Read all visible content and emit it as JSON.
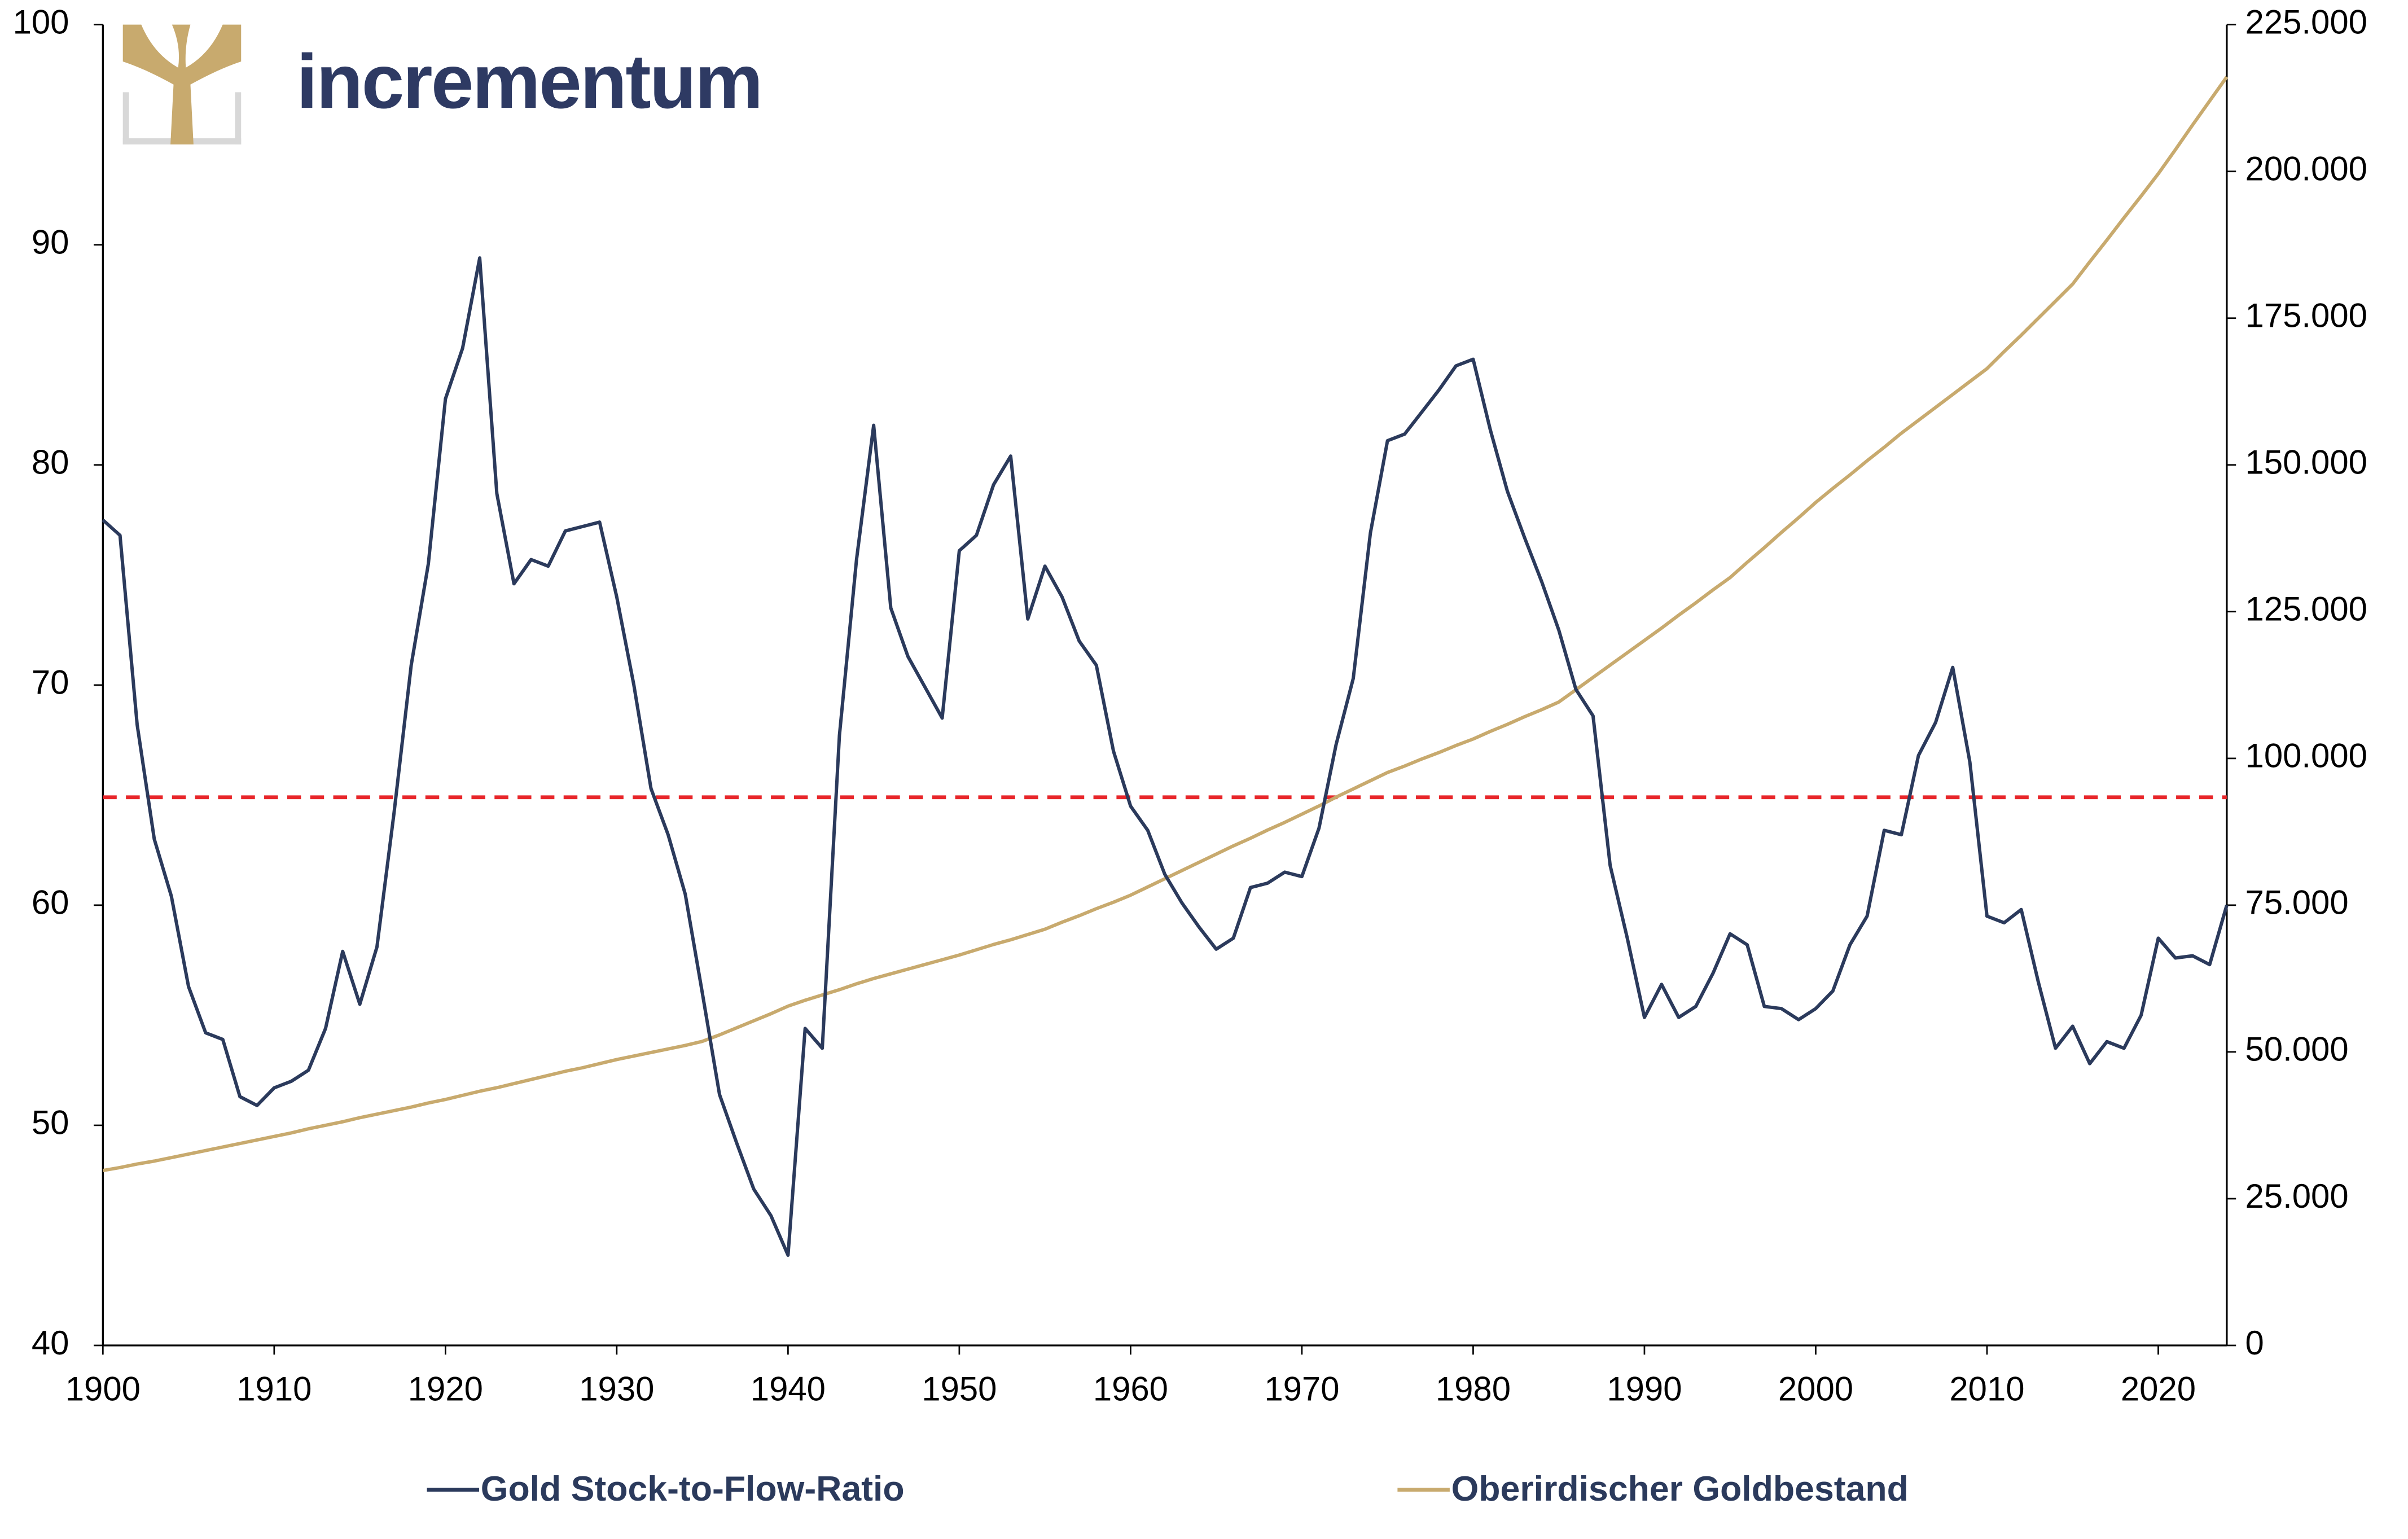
{
  "chart_data": {
    "type": "line",
    "logo": "incrementum",
    "x": [
      1900,
      1901,
      1902,
      1903,
      1904,
      1905,
      1906,
      1907,
      1908,
      1909,
      1910,
      1911,
      1912,
      1913,
      1914,
      1915,
      1916,
      1917,
      1918,
      1919,
      1920,
      1921,
      1922,
      1923,
      1924,
      1925,
      1926,
      1927,
      1928,
      1929,
      1930,
      1931,
      1932,
      1933,
      1934,
      1935,
      1936,
      1937,
      1938,
      1939,
      1940,
      1941,
      1942,
      1943,
      1944,
      1945,
      1946,
      1947,
      1948,
      1949,
      1950,
      1951,
      1952,
      1953,
      1954,
      1955,
      1956,
      1957,
      1958,
      1959,
      1960,
      1961,
      1962,
      1963,
      1964,
      1965,
      1966,
      1967,
      1968,
      1969,
      1970,
      1971,
      1972,
      1973,
      1974,
      1975,
      1976,
      1977,
      1978,
      1979,
      1980,
      1981,
      1982,
      1983,
      1984,
      1985,
      1986,
      1987,
      1988,
      1989,
      1990,
      1991,
      1992,
      1993,
      1994,
      1995,
      1996,
      1997,
      1998,
      1999,
      2000,
      2001,
      2002,
      2003,
      2004,
      2005,
      2006,
      2007,
      2008,
      2009,
      2010,
      2011,
      2012,
      2013,
      2014,
      2015,
      2016,
      2017,
      2018,
      2019,
      2020,
      2021,
      2022,
      2023,
      2024
    ],
    "series": [
      {
        "name": "Gold Stock-to-Flow-Ratio",
        "color": "#2b3a5c",
        "axis": "y",
        "values": [
          77.5,
          76.8,
          68.2,
          63.0,
          60.4,
          56.3,
          54.2,
          53.9,
          51.3,
          50.9,
          51.7,
          52.0,
          52.5,
          54.4,
          57.9,
          55.5,
          58.1,
          64.2,
          70.9,
          75.5,
          83.0,
          85.3,
          89.4,
          78.7,
          74.6,
          75.7,
          75.4,
          77.0,
          77.2,
          77.4,
          74.0,
          70.0,
          65.3,
          63.2,
          60.5,
          56.0,
          51.4,
          49.2,
          47.1,
          45.9,
          44.1,
          54.4,
          53.5,
          67.7,
          75.7,
          81.8,
          73.5,
          71.3,
          69.9,
          68.5,
          76.1,
          76.8,
          79.1,
          80.4,
          73.0,
          75.4,
          74.0,
          72.0,
          70.9,
          67.0,
          64.5,
          63.4,
          61.4,
          60.1,
          59.0,
          58.0,
          58.5,
          60.8,
          61.0,
          61.5,
          61.3,
          63.5,
          67.3,
          70.3,
          76.9,
          81.1,
          81.4,
          82.4,
          83.4,
          84.5,
          84.8,
          81.6,
          78.8,
          76.7,
          74.7,
          72.5,
          69.8,
          68.6,
          61.8,
          58.5,
          54.9,
          56.4,
          54.9,
          55.4,
          56.9,
          58.7,
          58.2,
          55.4,
          55.3,
          54.8,
          55.3,
          56.1,
          58.2,
          59.5,
          63.4,
          63.2,
          66.8,
          68.3,
          70.8,
          66.5,
          59.5,
          59.2,
          59.8,
          56.5,
          53.5,
          54.5,
          52.8,
          53.8,
          53.5,
          55.0,
          58.5,
          57.6,
          57.7,
          57.3,
          60.0
        ]
      },
      {
        "name": "Oberirdischer Goldbestand",
        "color": "#c8aa6e",
        "axis": "y2",
        "values": [
          29800,
          30300,
          30900,
          31400,
          32000,
          32600,
          33200,
          33800,
          34400,
          35000,
          35600,
          36200,
          36900,
          37500,
          38100,
          38800,
          39400,
          40000,
          40600,
          41300,
          41900,
          42600,
          43300,
          43900,
          44600,
          45300,
          46000,
          46700,
          47300,
          48000,
          48700,
          49300,
          49900,
          50500,
          51100,
          51800,
          52900,
          54100,
          55300,
          56500,
          57800,
          58800,
          59700,
          60600,
          61600,
          62500,
          63300,
          64100,
          64900,
          65700,
          66500,
          67400,
          68300,
          69100,
          70000,
          70900,
          72100,
          73200,
          74400,
          75500,
          76700,
          78100,
          79500,
          80900,
          82300,
          83700,
          85100,
          86400,
          87800,
          89100,
          90500,
          91900,
          93400,
          94800,
          96200,
          97600,
          98700,
          99900,
          101000,
          102200,
          103300,
          104600,
          105800,
          107100,
          108300,
          109600,
          111700,
          113800,
          115900,
          118000,
          120100,
          122200,
          124400,
          126500,
          128700,
          130800,
          133400,
          135900,
          138500,
          141000,
          143600,
          146000,
          148300,
          150700,
          153000,
          155400,
          157600,
          159800,
          162000,
          164200,
          166400,
          169300,
          172100,
          175000,
          177900,
          180800,
          184600,
          188300,
          192100,
          195800,
          199600,
          203700,
          207900,
          212000,
          216100
        ]
      }
    ],
    "reference_lines": [
      {
        "value": 64.9,
        "color": "#e8262a",
        "style": "dashed"
      }
    ],
    "xlim": [
      1900,
      2024
    ],
    "xticks": [
      1900,
      1910,
      1920,
      1930,
      1940,
      1950,
      1960,
      1970,
      1980,
      1990,
      2000,
      2010,
      2020
    ],
    "ylim": [
      40,
      100
    ],
    "yticks": [
      40,
      50,
      60,
      70,
      80,
      90,
      100
    ],
    "y2lim": [
      0,
      225000
    ],
    "y2ticks": [
      0,
      {
        "value": 25000,
        "label": "25.000"
      },
      {
        "value": 50000,
        "label": "50.000"
      },
      {
        "value": 75000,
        "label": "75.000"
      },
      {
        "value": 100000,
        "label": "100.000"
      },
      {
        "value": 125000,
        "label": "125.000"
      },
      {
        "value": 150000,
        "label": "150.000"
      },
      {
        "value": 175000,
        "label": "175.000"
      },
      {
        "value": 200000,
        "label": "200.000"
      },
      {
        "value": 225000,
        "label": "225.000"
      }
    ],
    "grid": false,
    "legend": "bottom"
  }
}
